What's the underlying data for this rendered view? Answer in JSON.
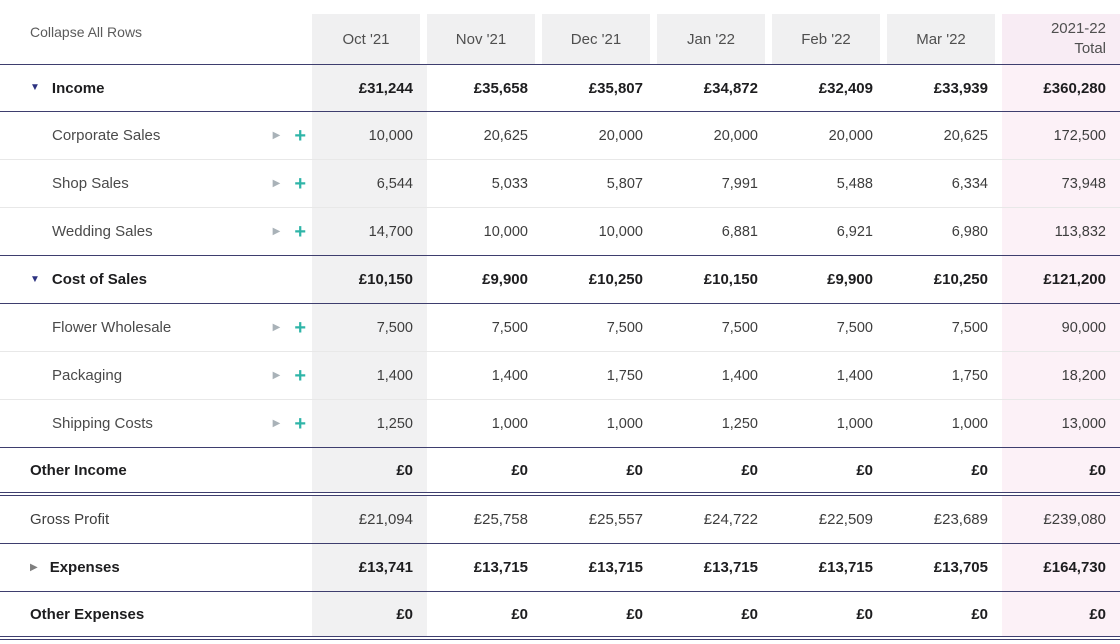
{
  "colors": {
    "accent_navy": "#3e3e6e",
    "teal_plus": "#2fb5a8",
    "first_column_bg": "#f1f1f2",
    "total_column_bg": "#fcf1f7"
  },
  "toolbar": {
    "collapse_all_label": "Collapse All Rows"
  },
  "table": {
    "columns": [
      "Oct '21",
      "Nov '21",
      "Dec '21",
      "Jan '22",
      "Feb '22",
      "Mar '22"
    ],
    "total_column_label": "2021-22\nTotal",
    "rows": [
      {
        "label": "Income",
        "type": "section",
        "state": "expanded",
        "values": [
          "£31,244",
          "£35,658",
          "£35,807",
          "£34,872",
          "£32,409",
          "£33,939"
        ],
        "total": "£360,280",
        "border_top": "navy",
        "border_bottom": "navy"
      },
      {
        "label": "Corporate Sales",
        "type": "child",
        "values": [
          "10,000",
          "20,625",
          "20,000",
          "20,000",
          "20,000",
          "20,625"
        ],
        "total": "172,500",
        "border_bottom": "light"
      },
      {
        "label": "Shop Sales",
        "type": "child",
        "values": [
          "6,544",
          "5,033",
          "5,807",
          "7,991",
          "5,488",
          "6,334"
        ],
        "total": "73,948",
        "border_bottom": "light"
      },
      {
        "label": "Wedding Sales",
        "type": "child",
        "values": [
          "14,700",
          "10,000",
          "10,000",
          "6,881",
          "6,921",
          "6,980"
        ],
        "total": "113,832",
        "border_bottom": "navy"
      },
      {
        "label": "Cost of Sales",
        "type": "section",
        "state": "expanded",
        "values": [
          "£10,150",
          "£9,900",
          "£10,250",
          "£10,150",
          "£9,900",
          "£10,250"
        ],
        "total": "£121,200",
        "border_bottom": "navy"
      },
      {
        "label": "Flower Wholesale",
        "type": "child",
        "values": [
          "7,500",
          "7,500",
          "7,500",
          "7,500",
          "7,500",
          "7,500"
        ],
        "total": "90,000",
        "border_bottom": "light"
      },
      {
        "label": "Packaging",
        "type": "child",
        "values": [
          "1,400",
          "1,400",
          "1,750",
          "1,400",
          "1,400",
          "1,750"
        ],
        "total": "18,200",
        "border_bottom": "light"
      },
      {
        "label": "Shipping Costs",
        "type": "child",
        "values": [
          "1,250",
          "1,000",
          "1,000",
          "1,250",
          "1,000",
          "1,000"
        ],
        "total": "13,000",
        "border_bottom": "navy"
      },
      {
        "label": "Other Income",
        "type": "summary",
        "values": [
          "£0",
          "£0",
          "£0",
          "£0",
          "£0",
          "£0"
        ],
        "total": "£0",
        "border_bottom": "double"
      },
      {
        "label": "Gross Profit",
        "type": "plain",
        "values": [
          "£21,094",
          "£25,758",
          "£25,557",
          "£24,722",
          "£22,509",
          "£23,689"
        ],
        "total": "£239,080",
        "border_bottom": "navy"
      },
      {
        "label": "Expenses",
        "type": "section",
        "state": "collapsed",
        "values": [
          "£13,741",
          "£13,715",
          "£13,715",
          "£13,715",
          "£13,715",
          "£13,705"
        ],
        "total": "£164,730",
        "border_bottom": "navy"
      },
      {
        "label": "Other Expenses",
        "type": "summary",
        "values": [
          "£0",
          "£0",
          "£0",
          "£0",
          "£0",
          "£0"
        ],
        "total": "£0",
        "border_bottom": "double"
      }
    ]
  }
}
